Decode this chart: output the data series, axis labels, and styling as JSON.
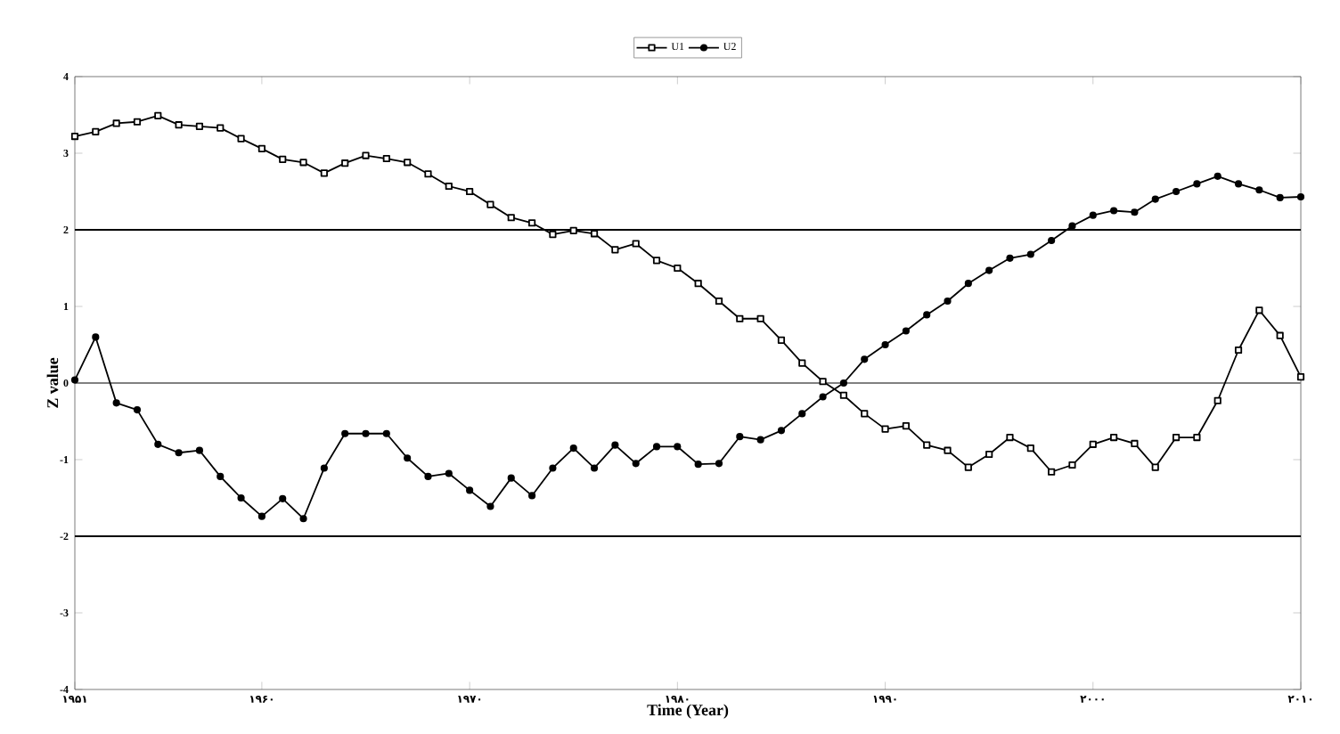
{
  "chart_data": {
    "type": "line",
    "xlabel": "Time (Year)",
    "ylabel": "Z value",
    "x": [
      1951,
      1952,
      1953,
      1954,
      1955,
      1956,
      1957,
      1958,
      1959,
      1960,
      1961,
      1962,
      1963,
      1964,
      1965,
      1966,
      1967,
      1968,
      1969,
      1970,
      1971,
      1972,
      1973,
      1974,
      1975,
      1976,
      1977,
      1978,
      1979,
      1980,
      1981,
      1982,
      1983,
      1984,
      1985,
      1986,
      1987,
      1988,
      1989,
      1990,
      1991,
      1992,
      1993,
      1994,
      1995,
      1996,
      1997,
      1998,
      1999,
      2000,
      2001,
      2002,
      2003,
      2004,
      2005,
      2006,
      2007,
      2008,
      2009,
      2010
    ],
    "series": [
      {
        "name": "U1",
        "color": "#000000",
        "marker": "square",
        "values": [
          3.22,
          3.28,
          3.39,
          3.41,
          3.49,
          3.37,
          3.35,
          3.33,
          3.19,
          3.06,
          2.92,
          2.88,
          2.74,
          2.87,
          2.97,
          2.93,
          2.88,
          2.73,
          2.57,
          2.5,
          2.33,
          2.16,
          2.09,
          1.94,
          1.99,
          1.95,
          1.74,
          1.82,
          1.6,
          1.5,
          1.3,
          1.07,
          0.84,
          0.84,
          0.56,
          0.26,
          0.02,
          -0.16,
          -0.4,
          -0.6,
          -0.56,
          -0.81,
          -0.88,
          -1.1,
          -0.93,
          -0.71,
          -0.85,
          -1.16,
          -1.07,
          -0.8,
          -0.71,
          -0.79,
          -1.1,
          -0.71,
          -0.71,
          -0.23,
          0.43,
          0.95,
          0.62,
          0.08
        ]
      },
      {
        "name": "U2",
        "color": "#000000",
        "marker": "circle",
        "values": [
          0.04,
          0.6,
          -0.26,
          -0.35,
          -0.8,
          -0.91,
          -0.88,
          -1.22,
          -1.5,
          -1.74,
          -1.51,
          -1.77,
          -1.11,
          -0.66,
          -0.66,
          -0.66,
          -0.98,
          -1.22,
          -1.18,
          -1.4,
          -1.61,
          -1.24,
          -1.47,
          -1.11,
          -0.85,
          -1.11,
          -0.81,
          -1.05,
          -0.83,
          -0.83,
          -1.06,
          -1.05,
          -0.7,
          -0.74,
          -0.62,
          -0.4,
          -0.18,
          0.0,
          0.31,
          0.5,
          0.68,
          0.89,
          1.07,
          1.3,
          1.47,
          1.63,
          1.68,
          1.86,
          2.05,
          2.19,
          2.25,
          2.23,
          2.4,
          2.5,
          2.6,
          2.7,
          2.6,
          2.52,
          2.42,
          2.43
        ]
      }
    ],
    "xlim": [
      1951,
      2010
    ],
    "xticks": [
      {
        "value": 1951,
        "label": "۱۹۵۱"
      },
      {
        "value": 1960,
        "label": "۱۹۶۰"
      },
      {
        "value": 1970,
        "label": "۱۹۷۰"
      },
      {
        "value": 1980,
        "label": "۱۹۸۰"
      },
      {
        "value": 1990,
        "label": "۱۹۹۰"
      },
      {
        "value": 2000,
        "label": "۲۰۰۰"
      },
      {
        "value": 2010,
        "label": "۲۰۱۰"
      }
    ],
    "ylim": [
      -4,
      4
    ],
    "yticks": [
      -4,
      -3,
      -2,
      -1,
      0,
      1,
      2,
      3,
      4
    ],
    "ref_lines": [
      {
        "axis": "y",
        "value": 2,
        "color": "#000000"
      },
      {
        "axis": "y",
        "value": 0,
        "color": "#808080"
      },
      {
        "axis": "y",
        "value": -2,
        "color": "#000000"
      }
    ],
    "grid": false,
    "legend": "top",
    "line_style": "solid"
  }
}
